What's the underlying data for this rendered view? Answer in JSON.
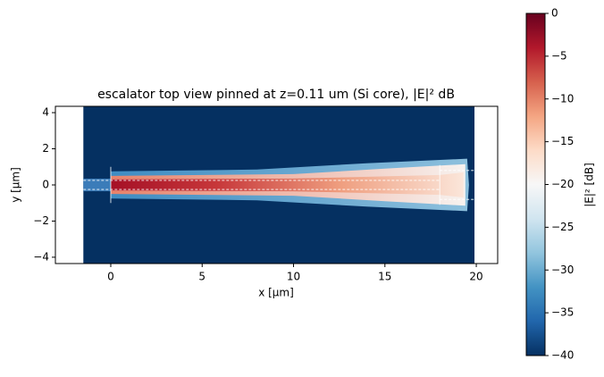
{
  "chart_data": {
    "type": "image",
    "title": "escalator top view pinned at z=0.11 um (Si core), |E|² dB",
    "xlabel": "x [µm]",
    "ylabel": "y [µm]",
    "xlim": [
      -3.03,
      21.17
    ],
    "ylim": [
      -4.35,
      4.35
    ],
    "xticks": [
      0,
      5,
      10,
      15,
      20
    ],
    "yticks": [
      {
        "value": -4,
        "label": "−4"
      },
      {
        "value": -2,
        "label": "−2"
      },
      0,
      2,
      4
    ],
    "colorbar": {
      "label": "|E|² [dB]",
      "cmap": "RdBu_r",
      "clim": [
        -40,
        0
      ],
      "ticks": [
        0,
        {
          "value": -5,
          "label": "−5"
        },
        {
          "value": -10,
          "label": "−10"
        },
        {
          "value": -15,
          "label": "−15"
        },
        {
          "value": -20,
          "label": "−20"
        },
        {
          "value": -25,
          "label": "−25"
        },
        {
          "value": -30,
          "label": "−30"
        },
        {
          "value": -35,
          "label": "−35"
        },
        {
          "value": -40,
          "label": "−40"
        }
      ]
    }
  }
}
